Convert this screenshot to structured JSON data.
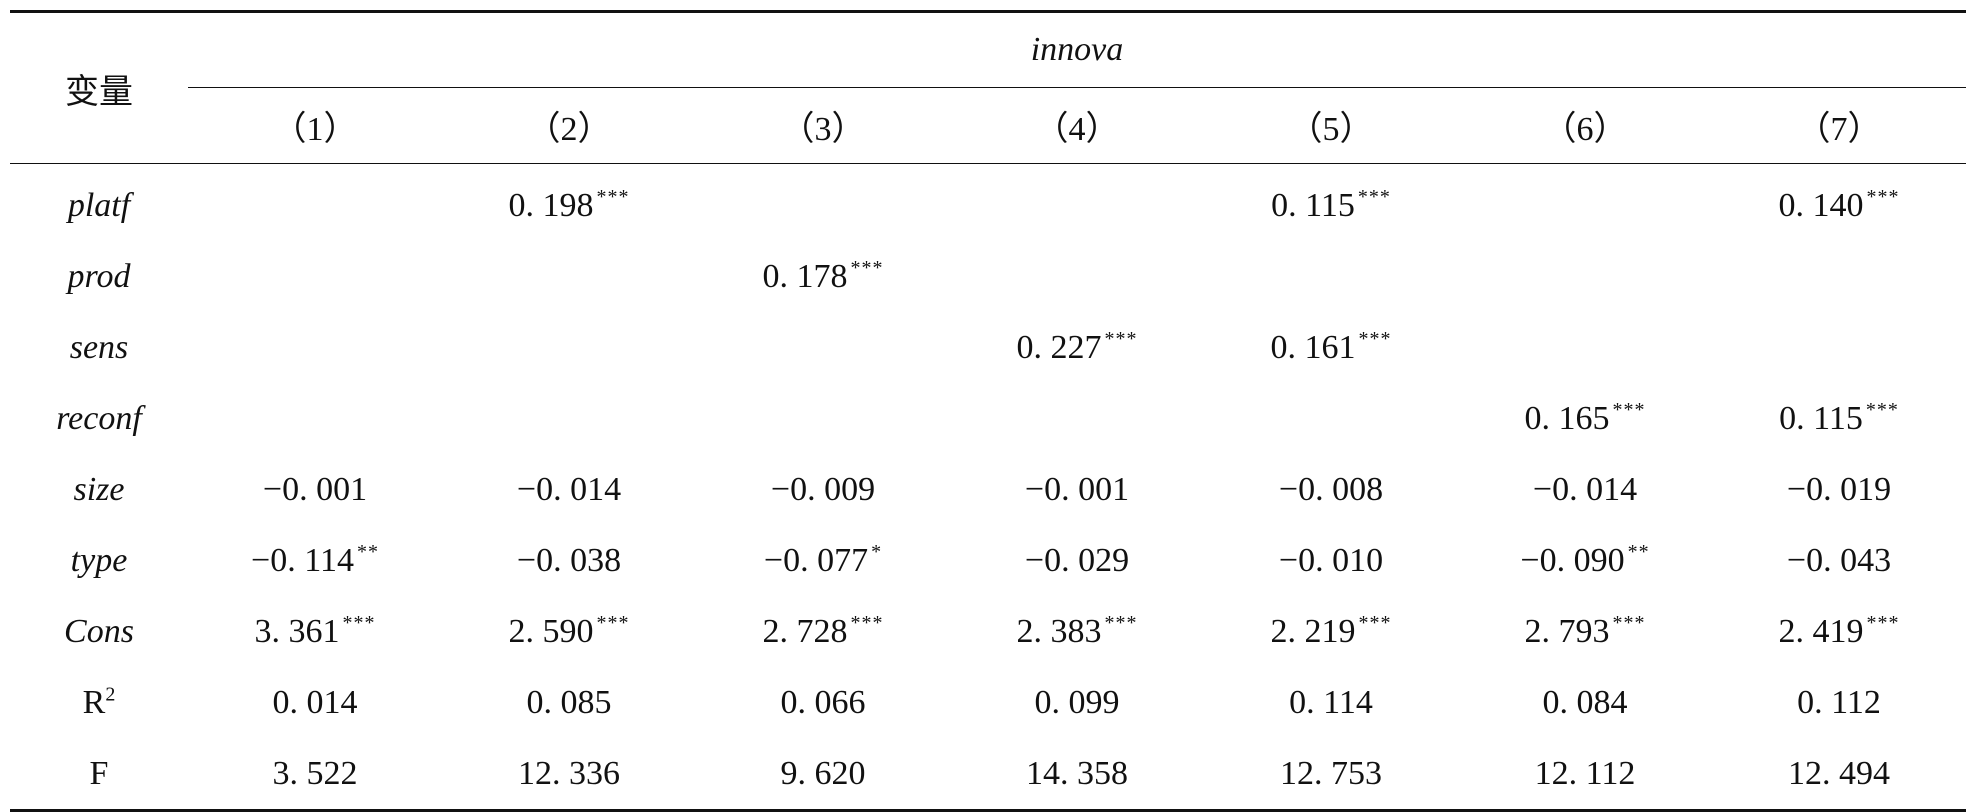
{
  "table": {
    "var_header": "变量",
    "group_header": "innova",
    "columns": [
      "（1）",
      "（2）",
      "（3）",
      "（4）",
      "（5）",
      "（6）",
      "（7）"
    ],
    "rows": [
      {
        "var": "platf",
        "italic": true,
        "cells": [
          {
            "v": "",
            "s": ""
          },
          {
            "v": "0. 198",
            "s": "***"
          },
          {
            "v": "",
            "s": ""
          },
          {
            "v": "",
            "s": ""
          },
          {
            "v": "0. 115",
            "s": "***"
          },
          {
            "v": "",
            "s": ""
          },
          {
            "v": "0. 140",
            "s": "***"
          }
        ]
      },
      {
        "var": "prod",
        "italic": true,
        "cells": [
          {
            "v": "",
            "s": ""
          },
          {
            "v": "",
            "s": ""
          },
          {
            "v": "0. 178",
            "s": "***"
          },
          {
            "v": "",
            "s": ""
          },
          {
            "v": "",
            "s": ""
          },
          {
            "v": "",
            "s": ""
          },
          {
            "v": "",
            "s": ""
          }
        ]
      },
      {
        "var": "sens",
        "italic": true,
        "cells": [
          {
            "v": "",
            "s": ""
          },
          {
            "v": "",
            "s": ""
          },
          {
            "v": "",
            "s": ""
          },
          {
            "v": "0. 227",
            "s": "***"
          },
          {
            "v": "0. 161",
            "s": "***"
          },
          {
            "v": "",
            "s": ""
          },
          {
            "v": "",
            "s": ""
          }
        ]
      },
      {
        "var": "reconf",
        "italic": true,
        "cells": [
          {
            "v": "",
            "s": ""
          },
          {
            "v": "",
            "s": ""
          },
          {
            "v": "",
            "s": ""
          },
          {
            "v": "",
            "s": ""
          },
          {
            "v": "",
            "s": ""
          },
          {
            "v": "0. 165",
            "s": "***"
          },
          {
            "v": "0. 115",
            "s": "***"
          }
        ]
      },
      {
        "var": "size",
        "italic": true,
        "cells": [
          {
            "v": "−0. 001",
            "s": ""
          },
          {
            "v": "−0. 014",
            "s": ""
          },
          {
            "v": "−0. 009",
            "s": ""
          },
          {
            "v": "−0. 001",
            "s": ""
          },
          {
            "v": "−0. 008",
            "s": ""
          },
          {
            "v": "−0. 014",
            "s": ""
          },
          {
            "v": "−0. 019",
            "s": ""
          }
        ]
      },
      {
        "var": "type",
        "italic": true,
        "cells": [
          {
            "v": "−0. 114",
            "s": "**"
          },
          {
            "v": "−0. 038",
            "s": ""
          },
          {
            "v": "−0. 077",
            "s": "*"
          },
          {
            "v": "−0. 029",
            "s": ""
          },
          {
            "v": "−0. 010",
            "s": ""
          },
          {
            "v": "−0. 090",
            "s": "**"
          },
          {
            "v": "−0. 043",
            "s": ""
          }
        ]
      },
      {
        "var": "Cons",
        "italic": true,
        "cells": [
          {
            "v": "3. 361",
            "s": "***"
          },
          {
            "v": "2. 590",
            "s": "***"
          },
          {
            "v": "2. 728",
            "s": "***"
          },
          {
            "v": "2. 383",
            "s": "***"
          },
          {
            "v": "2. 219",
            "s": "***"
          },
          {
            "v": "2. 793",
            "s": "***"
          },
          {
            "v": "2. 419",
            "s": "***"
          }
        ]
      },
      {
        "var": "R",
        "var_sup": "2",
        "italic": false,
        "cells": [
          {
            "v": "0. 014",
            "s": ""
          },
          {
            "v": "0. 085",
            "s": ""
          },
          {
            "v": "0. 066",
            "s": ""
          },
          {
            "v": "0. 099",
            "s": ""
          },
          {
            "v": "0. 114",
            "s": ""
          },
          {
            "v": "0. 084",
            "s": ""
          },
          {
            "v": "0. 112",
            "s": ""
          }
        ]
      },
      {
        "var": "F",
        "italic": false,
        "cells": [
          {
            "v": "3. 522",
            "s": ""
          },
          {
            "v": "12. 336",
            "s": ""
          },
          {
            "v": "9. 620",
            "s": ""
          },
          {
            "v": "14. 358",
            "s": ""
          },
          {
            "v": "12. 753",
            "s": ""
          },
          {
            "v": "12. 112",
            "s": ""
          },
          {
            "v": "12. 494",
            "s": ""
          }
        ]
      }
    ]
  }
}
